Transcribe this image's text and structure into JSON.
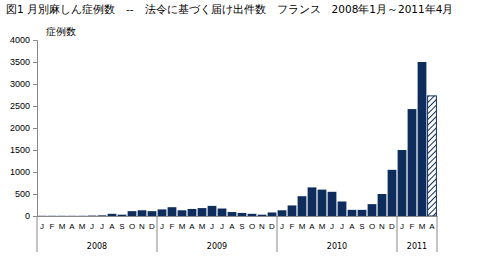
{
  "chart_data": {
    "type": "bar",
    "title": "図1 月別麻しん症例数　--　法令に基づく届け出件数　フランス　2008年1月～2011年4月",
    "y_label": "症例数",
    "categories": [
      "J",
      "F",
      "M",
      "A",
      "M",
      "J",
      "J",
      "A",
      "S",
      "O",
      "N",
      "D",
      "J",
      "F",
      "M",
      "A",
      "M",
      "J",
      "J",
      "A",
      "S",
      "O",
      "N",
      "D",
      "J",
      "F",
      "M",
      "A",
      "M",
      "J",
      "J",
      "A",
      "S",
      "O",
      "N",
      "D",
      "J",
      "F",
      "M",
      "A"
    ],
    "groups": [
      {
        "label": "2008",
        "count": 12
      },
      {
        "label": "2009",
        "count": 12
      },
      {
        "label": "2010",
        "count": 12
      },
      {
        "label": "2011",
        "count": 4
      }
    ],
    "values": [
      5,
      5,
      5,
      5,
      5,
      10,
      15,
      50,
      30,
      110,
      130,
      110,
      150,
      200,
      130,
      160,
      180,
      230,
      170,
      90,
      70,
      50,
      30,
      80,
      130,
      240,
      450,
      650,
      600,
      550,
      330,
      140,
      140,
      270,
      500,
      1050,
      1500,
      2430,
      3500,
      2730
    ],
    "colors": [
      "#0f2d5c",
      "#0f2d5c",
      "#0f2d5c",
      "#0f2d5c",
      "#0f2d5c",
      "#0f2d5c",
      "#0f2d5c",
      "#0f2d5c",
      "#0f2d5c",
      "#0f2d5c",
      "#0f2d5c",
      "#0f2d5c",
      "#0f2d5c",
      "#0f2d5c",
      "#0f2d5c",
      "#0f2d5c",
      "#0f2d5c",
      "#0f2d5c",
      "#0f2d5c",
      "#0f2d5c",
      "#0f2d5c",
      "#0f2d5c",
      "#0f2d5c",
      "#0f2d5c",
      "#0f2d5c",
      "#0f2d5c",
      "#0f2d5c",
      "#0f2d5c",
      "#0f2d5c",
      "#0f2d5c",
      "#0f2d5c",
      "#0f2d5c",
      "#0f2d5c",
      "#0f2d5c",
      "#0f2d5c",
      "#0f2d5c",
      "#0f2d5c",
      "#0f2d5c",
      "#0f2d5c",
      "hatch"
    ],
    "ylim": [
      0,
      4000
    ],
    "yticks": [
      0,
      500,
      1000,
      1500,
      2000,
      2500,
      3000,
      3500,
      4000
    ],
    "grid": false
  }
}
